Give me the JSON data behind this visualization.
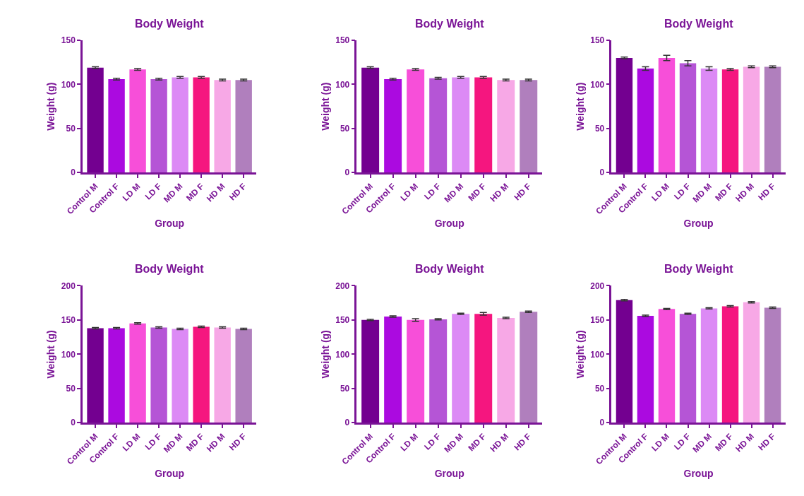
{
  "chart_data": [
    {
      "type": "bar",
      "title": "Body Weight",
      "xlabel": "Group",
      "ylabel": "Weight (g)",
      "categories": [
        "Control M",
        "Control F",
        "LD M",
        "LD F",
        "MD M",
        "MD F",
        "HD M",
        "HD F"
      ],
      "values": [
        119,
        106,
        117,
        106,
        108,
        108,
        105,
        105
      ],
      "errors": [
        1,
        1,
        1,
        1,
        1,
        1,
        1,
        1
      ],
      "colors": [
        "#730090",
        "#ab0ae0",
        "#f74fd9",
        "#b555d6",
        "#dc8af5",
        "#f5167f",
        "#f7a8e6",
        "#b07fbd"
      ],
      "ylim": [
        0,
        150
      ],
      "yticks": [
        0,
        50,
        100,
        150
      ]
    },
    {
      "type": "bar",
      "title": "Body Weight",
      "xlabel": "Group",
      "ylabel": "Weight (g)",
      "categories": [
        "Control M",
        "Control F",
        "LD M",
        "LD F",
        "MD M",
        "MD F",
        "HD M",
        "HD F"
      ],
      "values": [
        119,
        106,
        117,
        107,
        108,
        108,
        105,
        105
      ],
      "errors": [
        1,
        1,
        1,
        1,
        1,
        1,
        1,
        1
      ],
      "colors": [
        "#730090",
        "#ab0ae0",
        "#f74fd9",
        "#b555d6",
        "#dc8af5",
        "#f5167f",
        "#f7a8e6",
        "#b07fbd"
      ],
      "ylim": [
        0,
        150
      ],
      "yticks": [
        0,
        50,
        100,
        150
      ]
    },
    {
      "type": "bar",
      "title": "Body Weight",
      "xlabel": "Group",
      "ylabel": "Weight (g)",
      "categories": [
        "Control M",
        "Control F",
        "LD M",
        "LD F",
        "MD M",
        "MD F",
        "HD M",
        "HD F"
      ],
      "values": [
        130,
        118,
        130,
        124,
        118,
        117,
        120,
        120
      ],
      "errors": [
        1,
        2,
        3,
        3,
        2,
        1,
        1,
        1
      ],
      "colors": [
        "#730090",
        "#ab0ae0",
        "#f74fd9",
        "#b555d6",
        "#dc8af5",
        "#f5167f",
        "#f7a8e6",
        "#b07fbd"
      ],
      "ylim": [
        0,
        150
      ],
      "yticks": [
        0,
        50,
        100,
        150
      ]
    },
    {
      "type": "bar",
      "title": "Body Weight",
      "xlabel": "Group",
      "ylabel": "Weight (g)",
      "categories": [
        "Control M",
        "Control F",
        "LD M",
        "LD F",
        "MD M",
        "MD F",
        "HD M",
        "HD F"
      ],
      "values": [
        138,
        138,
        145,
        139,
        137,
        140,
        139,
        137
      ],
      "errors": [
        1,
        1,
        1,
        1,
        1,
        1,
        1,
        1
      ],
      "colors": [
        "#730090",
        "#ab0ae0",
        "#f74fd9",
        "#b555d6",
        "#dc8af5",
        "#f5167f",
        "#f7a8e6",
        "#b07fbd"
      ],
      "ylim": [
        0,
        200
      ],
      "yticks": [
        0,
        50,
        100,
        150,
        200
      ]
    },
    {
      "type": "bar",
      "title": "Body Weight",
      "xlabel": "Group",
      "ylabel": "Weight (g)",
      "categories": [
        "Control M",
        "Control F",
        "LD M",
        "LD F",
        "MD M",
        "MD F",
        "HD M",
        "HD F"
      ],
      "values": [
        150,
        155,
        150,
        151,
        159,
        159,
        153,
        162
      ],
      "errors": [
        1,
        1,
        2,
        1,
        1,
        2,
        1,
        1
      ],
      "colors": [
        "#730090",
        "#ab0ae0",
        "#f74fd9",
        "#b555d6",
        "#dc8af5",
        "#f5167f",
        "#f7a8e6",
        "#b07fbd"
      ],
      "ylim": [
        0,
        200
      ],
      "yticks": [
        0,
        50,
        100,
        150,
        200
      ]
    },
    {
      "type": "bar",
      "title": "Body Weight",
      "xlabel": "Group",
      "ylabel": "Weight (g)",
      "categories": [
        "Control M",
        "Control F",
        "LD M",
        "LD F",
        "MD M",
        "MD F",
        "HD M",
        "HD F"
      ],
      "values": [
        179,
        156,
        166,
        159,
        167,
        170,
        176,
        168
      ],
      "errors": [
        1,
        1,
        1,
        1,
        1,
        1,
        1,
        1
      ],
      "colors": [
        "#730090",
        "#ab0ae0",
        "#f74fd9",
        "#b555d6",
        "#dc8af5",
        "#f5167f",
        "#f7a8e6",
        "#b07fbd"
      ],
      "ylim": [
        0,
        200
      ],
      "yticks": [
        0,
        50,
        100,
        150,
        200
      ]
    }
  ]
}
